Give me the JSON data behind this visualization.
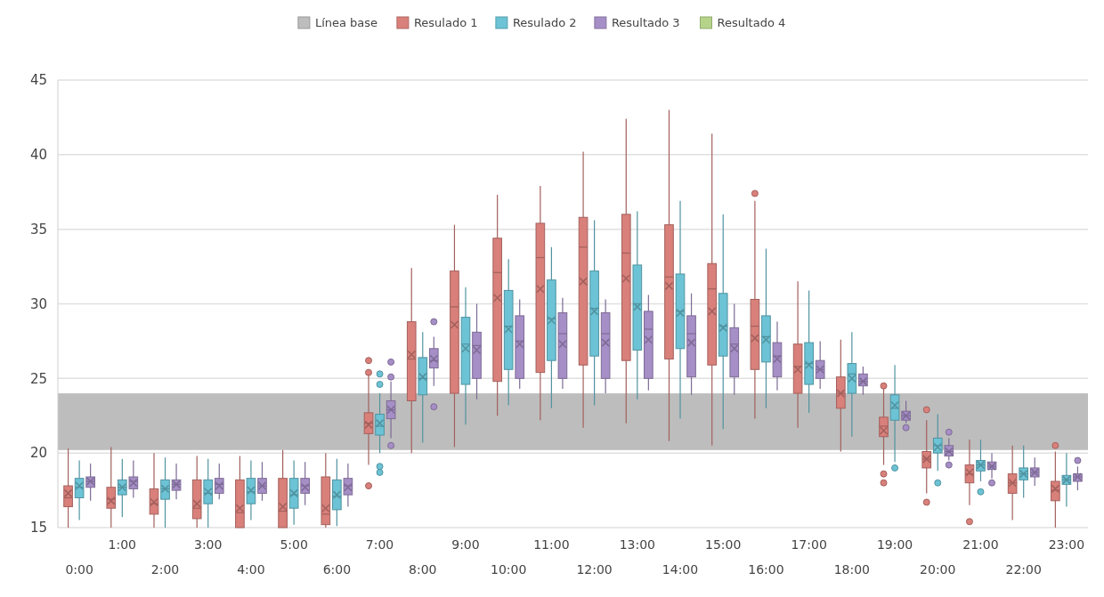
{
  "chart_data": {
    "type": "box",
    "categories": [
      "0:00",
      "1:00",
      "2:00",
      "3:00",
      "4:00",
      "5:00",
      "6:00",
      "7:00",
      "8:00",
      "9:00",
      "10:00",
      "11:00",
      "12:00",
      "13:00",
      "14:00",
      "15:00",
      "16:00",
      "17:00",
      "18:00",
      "19:00",
      "20:00",
      "21:00",
      "22:00",
      "23:00"
    ],
    "ylim": [
      15,
      45
    ],
    "yticks": [
      15,
      20,
      25,
      30,
      35,
      40,
      45
    ],
    "grid": "y",
    "legend": "top",
    "bands": [
      {
        "axis": "y",
        "from": 20.2,
        "to": 24,
        "label": "Línea base",
        "color": "#bdbdbd"
      }
    ],
    "series": [
      {
        "name": "Resulado 1",
        "color": "#d9807b",
        "boxes": [
          {
            "low": 15,
            "q1": 16.4,
            "median": 17,
            "q3": 17.8,
            "high": 20.3,
            "mean": 17.3
          },
          {
            "low": 15,
            "q1": 16.3,
            "median": 16.9,
            "q3": 17.7,
            "high": 20.4,
            "mean": 16.8
          },
          {
            "low": 15,
            "q1": 15.9,
            "median": 16.6,
            "q3": 17.6,
            "high": 20,
            "mean": 16.7
          },
          {
            "low": 15,
            "q1": 15.6,
            "median": 16.3,
            "q3": 18.2,
            "high": 19.8,
            "mean": 16.6
          },
          {
            "low": 15,
            "q1": 15,
            "median": 16,
            "q3": 18.2,
            "high": 19.8,
            "mean": 16.3
          },
          {
            "low": 15,
            "q1": 15,
            "median": 16.1,
            "q3": 18.3,
            "high": 20.2,
            "mean": 16.4
          },
          {
            "low": 15,
            "q1": 15.2,
            "median": 15.9,
            "q3": 18.4,
            "high": 20,
            "mean": 16.3
          },
          {
            "low": 19.2,
            "q1": 21.3,
            "median": 22,
            "q3": 22.7,
            "high": 25.4,
            "mean": 21.9,
            "outliers": [
              26.2,
              25.4,
              17.8
            ]
          },
          {
            "low": 20,
            "q1": 23.5,
            "median": 26.3,
            "q3": 28.8,
            "high": 32.4,
            "mean": 26.6
          },
          {
            "low": 20.4,
            "q1": 24,
            "median": 29.8,
            "q3": 32.2,
            "high": 35.3,
            "mean": 28.6
          },
          {
            "low": 22.5,
            "q1": 24.8,
            "median": 32.1,
            "q3": 34.4,
            "high": 37.3,
            "mean": 30.4
          },
          {
            "low": 22.2,
            "q1": 25.4,
            "median": 33.1,
            "q3": 35.4,
            "high": 37.9,
            "mean": 31
          },
          {
            "low": 21.7,
            "q1": 25.9,
            "median": 33.8,
            "q3": 35.8,
            "high": 40.2,
            "mean": 31.5
          },
          {
            "low": 22,
            "q1": 26.2,
            "median": 33.4,
            "q3": 36,
            "high": 42.4,
            "mean": 31.7
          },
          {
            "low": 20.8,
            "q1": 26.3,
            "median": 31.8,
            "q3": 35.3,
            "high": 43,
            "mean": 31.2
          },
          {
            "low": 20.5,
            "q1": 25.9,
            "median": 31,
            "q3": 32.7,
            "high": 41.4,
            "mean": 29.5
          },
          {
            "low": 22.3,
            "q1": 25.6,
            "median": 28.5,
            "q3": 30.3,
            "high": 36.9,
            "mean": 27.7,
            "outliers": [
              37.4
            ]
          },
          {
            "low": 21.7,
            "q1": 24,
            "median": 25.8,
            "q3": 27.3,
            "high": 31.5,
            "mean": 25.6
          },
          {
            "low": 20.1,
            "q1": 23,
            "median": 24,
            "q3": 25.1,
            "high": 27.6,
            "mean": 24
          },
          {
            "low": 19.2,
            "q1": 21.1,
            "median": 21.8,
            "q3": 22.4,
            "high": 24.3,
            "mean": 21.5,
            "outliers": [
              24.5,
              18.6,
              18
            ]
          },
          {
            "low": 17.3,
            "q1": 19,
            "median": 19.6,
            "q3": 20.1,
            "high": 22.2,
            "mean": 19.6,
            "outliers": [
              22.9,
              16.7
            ]
          },
          {
            "low": 16.5,
            "q1": 18,
            "median": 18.6,
            "q3": 19.2,
            "high": 20.9,
            "mean": 18.7,
            "outliers": [
              15.4
            ]
          },
          {
            "low": 15.5,
            "q1": 17.3,
            "median": 18,
            "q3": 18.6,
            "high": 20.5,
            "mean": 18
          },
          {
            "low": 15,
            "q1": 16.8,
            "median": 17.5,
            "q3": 18.1,
            "high": 20.1,
            "mean": 17.6,
            "outliers": [
              20.5
            ]
          }
        ]
      },
      {
        "name": "Resulado 2",
        "color": "#6cc3d5",
        "boxes": [
          {
            "low": 15.5,
            "q1": 17,
            "median": 17.7,
            "q3": 18.3,
            "high": 19.5,
            "mean": 17.8
          },
          {
            "low": 15.7,
            "q1": 17.2,
            "median": 17.7,
            "q3": 18.2,
            "high": 19.6,
            "mean": 17.7
          },
          {
            "low": 15,
            "q1": 16.9,
            "median": 17.6,
            "q3": 18.2,
            "high": 19.7,
            "mean": 17.6
          },
          {
            "low": 15,
            "q1": 16.6,
            "median": 17.3,
            "q3": 18.2,
            "high": 19.6,
            "mean": 17.4
          },
          {
            "low": 15.5,
            "q1": 16.6,
            "median": 17.4,
            "q3": 18.3,
            "high": 19.5,
            "mean": 17.5
          },
          {
            "low": 15.2,
            "q1": 16.3,
            "median": 17.2,
            "q3": 18.3,
            "high": 19.5,
            "mean": 17.3
          },
          {
            "low": 15.1,
            "q1": 16.2,
            "median": 17.1,
            "q3": 18.2,
            "high": 19.6,
            "mean": 17.2
          },
          {
            "low": 20,
            "q1": 21.2,
            "median": 21.8,
            "q3": 22.6,
            "high": 24,
            "mean": 22,
            "outliers": [
              25.3,
              24.6,
              19.1,
              18.7
            ]
          },
          {
            "low": 20.7,
            "q1": 23.9,
            "median": 25,
            "q3": 26.4,
            "high": 28.1,
            "mean": 25.1
          },
          {
            "low": 21.9,
            "q1": 24.6,
            "median": 27.3,
            "q3": 29.1,
            "high": 31.1,
            "mean": 27
          },
          {
            "low": 23.2,
            "q1": 25.6,
            "median": 28.5,
            "q3": 30.9,
            "high": 33,
            "mean": 28.3
          },
          {
            "low": 23,
            "q1": 26.2,
            "median": 29,
            "q3": 31.6,
            "high": 33.8,
            "mean": 28.9
          },
          {
            "low": 23.2,
            "q1": 26.5,
            "median": 29.7,
            "q3": 32.2,
            "high": 35.6,
            "mean": 29.5
          },
          {
            "low": 23.6,
            "q1": 26.9,
            "median": 30,
            "q3": 32.6,
            "high": 36.2,
            "mean": 29.8
          },
          {
            "low": 22.3,
            "q1": 27,
            "median": 29.5,
            "q3": 32,
            "high": 36.9,
            "mean": 29.4
          },
          {
            "low": 21.6,
            "q1": 26.5,
            "median": 28.5,
            "q3": 30.7,
            "high": 36,
            "mean": 28.4
          },
          {
            "low": 23,
            "q1": 26.1,
            "median": 27.8,
            "q3": 29.2,
            "high": 33.7,
            "mean": 27.6
          },
          {
            "low": 22.7,
            "q1": 24.6,
            "median": 26,
            "q3": 27.4,
            "high": 30.9,
            "mean": 25.9
          },
          {
            "low": 21.1,
            "q1": 24,
            "median": 25.3,
            "q3": 26,
            "high": 28.1,
            "mean": 25
          },
          {
            "low": 19.4,
            "q1": 22.2,
            "median": 23,
            "q3": 23.9,
            "high": 25.9,
            "mean": 23.2,
            "outliers": [
              19
            ]
          },
          {
            "low": 18.8,
            "q1": 20,
            "median": 20.5,
            "q3": 21,
            "high": 22.6,
            "mean": 20.4,
            "outliers": [
              18
            ]
          },
          {
            "low": 18.1,
            "q1": 18.8,
            "median": 19.2,
            "q3": 19.5,
            "high": 20.9,
            "mean": 19.2,
            "outliers": [
              17.4
            ]
          },
          {
            "low": 17,
            "q1": 18.2,
            "median": 18.6,
            "q3": 19,
            "high": 20.5,
            "mean": 18.6
          },
          {
            "low": 16.4,
            "q1": 17.9,
            "median": 18.2,
            "q3": 18.5,
            "high": 20,
            "mean": 18.2
          }
        ]
      },
      {
        "name": "Resultado 3",
        "color": "#a68ec6",
        "boxes": [
          {
            "low": 16.8,
            "q1": 17.7,
            "median": 18.1,
            "q3": 18.4,
            "high": 19.3,
            "mean": 18.1
          },
          {
            "low": 17,
            "q1": 17.6,
            "median": 18.1,
            "q3": 18.4,
            "high": 19.5,
            "mean": 18
          },
          {
            "low": 16.9,
            "q1": 17.5,
            "median": 17.9,
            "q3": 18.2,
            "high": 19.3,
            "mean": 17.9
          },
          {
            "low": 16.9,
            "q1": 17.3,
            "median": 17.9,
            "q3": 18.3,
            "high": 19.3,
            "mean": 17.8
          },
          {
            "low": 16.8,
            "q1": 17.3,
            "median": 17.8,
            "q3": 18.3,
            "high": 19.4,
            "mean": 17.8
          },
          {
            "low": 16.5,
            "q1": 17.3,
            "median": 17.8,
            "q3": 18.3,
            "high": 19.4,
            "mean": 17.7
          },
          {
            "low": 16.4,
            "q1": 17.2,
            "median": 17.8,
            "q3": 18.3,
            "high": 19.3,
            "mean": 17.7
          },
          {
            "low": 21,
            "q1": 22.3,
            "median": 22.9,
            "q3": 23.5,
            "high": 24.8,
            "mean": 22.9,
            "outliers": [
              26.1,
              25.1,
              20.5
            ]
          },
          {
            "low": 24.5,
            "q1": 25.7,
            "median": 26.2,
            "q3": 27,
            "high": 27.8,
            "mean": 26.3,
            "outliers": [
              28.8,
              23.1
            ]
          },
          {
            "low": 23.6,
            "q1": 25,
            "median": 27.2,
            "q3": 28.1,
            "high": 30,
            "mean": 26.9
          },
          {
            "low": 24.3,
            "q1": 25,
            "median": 27.5,
            "q3": 29.2,
            "high": 30.3,
            "mean": 27.3
          },
          {
            "low": 24.3,
            "q1": 25,
            "median": 28,
            "q3": 29.4,
            "high": 30.4,
            "mean": 27.3
          },
          {
            "low": 24,
            "q1": 25,
            "median": 28,
            "q3": 29.4,
            "high": 30.3,
            "mean": 27.4
          },
          {
            "low": 24.2,
            "q1": 25,
            "median": 28.3,
            "q3": 29.5,
            "high": 30.6,
            "mean": 27.6
          },
          {
            "low": 23.9,
            "q1": 25.1,
            "median": 28,
            "q3": 29.2,
            "high": 30.7,
            "mean": 27.4
          },
          {
            "low": 23.9,
            "q1": 25.1,
            "median": 27.3,
            "q3": 28.4,
            "high": 30,
            "mean": 27
          },
          {
            "low": 24.2,
            "q1": 25.1,
            "median": 26.5,
            "q3": 27.4,
            "high": 28.8,
            "mean": 26.3
          },
          {
            "low": 24.3,
            "q1": 25,
            "median": 25.6,
            "q3": 26.2,
            "high": 27.5,
            "mean": 25.6
          },
          {
            "low": 23.9,
            "q1": 24.5,
            "median": 24.8,
            "q3": 25.3,
            "high": 25.8,
            "mean": 24.8
          },
          {
            "low": 22,
            "q1": 22.2,
            "median": 22.5,
            "q3": 22.8,
            "high": 23.5,
            "mean": 22.5,
            "outliers": [
              21.7
            ]
          },
          {
            "low": 19.5,
            "q1": 19.8,
            "median": 20.1,
            "q3": 20.5,
            "high": 21,
            "mean": 20.1,
            "outliers": [
              21.4,
              19.2
            ]
          },
          {
            "low": 18.3,
            "q1": 18.9,
            "median": 19.1,
            "q3": 19.4,
            "high": 20,
            "mean": 19.1,
            "outliers": [
              18
            ]
          },
          {
            "low": 17.8,
            "q1": 18.4,
            "median": 18.7,
            "q3": 19,
            "high": 19.7,
            "mean": 18.7
          },
          {
            "low": 17.5,
            "q1": 18.1,
            "median": 18.4,
            "q3": 18.6,
            "high": 19.1,
            "mean": 18.4,
            "outliers": [
              19.5
            ]
          }
        ]
      },
      {
        "name": "Resultado 4",
        "color": "#b5d48a",
        "boxes": [
          null,
          null,
          null,
          null,
          null,
          null,
          null,
          null,
          null,
          null,
          null,
          null,
          null,
          null,
          null,
          null,
          null,
          null,
          null,
          null,
          null,
          null,
          null,
          null
        ]
      }
    ]
  }
}
